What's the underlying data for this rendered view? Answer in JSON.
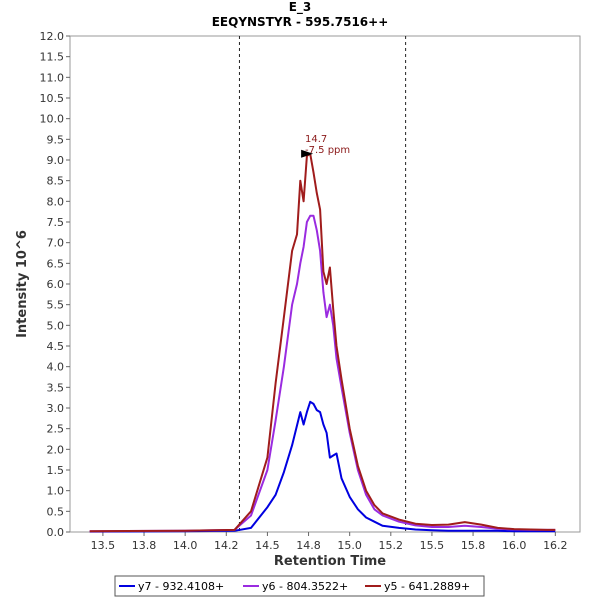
{
  "chart_data": {
    "type": "line",
    "title": "E_3",
    "subtitle": "EEQYNSTYR - 595.7516++",
    "xlabel": "Retention Time",
    "ylabel": "Intensity 10^6",
    "xlim": [
      13.3,
      16.4
    ],
    "ylim": [
      0,
      12.0
    ],
    "xticks": [
      "13.5",
      "13.8",
      "14.0",
      "14.2",
      "14.5",
      "14.8",
      "15.0",
      "15.2",
      "15.5",
      "15.8",
      "16.0",
      "16.2"
    ],
    "xtick_values": [
      13.5,
      13.75,
      14.0,
      14.25,
      14.5,
      14.75,
      15.0,
      15.25,
      15.5,
      15.75,
      16.0,
      16.25
    ],
    "yticks": [
      "0.0",
      "0.5",
      "1.0",
      "1.5",
      "2.0",
      "2.5",
      "3.0",
      "3.5",
      "4.0",
      "4.5",
      "5.0",
      "5.5",
      "6.0",
      "6.5",
      "7.0",
      "7.5",
      "8.0",
      "8.5",
      "9.0",
      "9.5",
      "10.0",
      "10.5",
      "11.0",
      "11.5",
      "12.0"
    ],
    "ytick_values": [
      0,
      0.5,
      1,
      1.5,
      2,
      2.5,
      3,
      3.5,
      4,
      4.5,
      5,
      5.5,
      6,
      6.5,
      7,
      7.5,
      8,
      8.5,
      9,
      9.5,
      10,
      10.5,
      11,
      11.5,
      12
    ],
    "boundaries": [
      14.33,
      15.34
    ],
    "annotation": {
      "x": 14.79,
      "y": 9.15,
      "line1": "14.7",
      "line2": "-7.5 ppm"
    },
    "legend_position": "bottom",
    "grid": false,
    "series": [
      {
        "name": "y7 - 932.4108+",
        "color": "#0000e0",
        "x": [
          13.42,
          14.0,
          14.3,
          14.4,
          14.5,
          14.55,
          14.6,
          14.65,
          14.7,
          14.72,
          14.74,
          14.76,
          14.78,
          14.8,
          14.82,
          14.84,
          14.86,
          14.88,
          14.9,
          14.92,
          14.95,
          15.0,
          15.05,
          15.1,
          15.15,
          15.2,
          15.3,
          15.4,
          15.5,
          15.6,
          15.7,
          15.8,
          15.9,
          16.0,
          16.1,
          16.2,
          16.25
        ],
        "y": [
          0.01,
          0.02,
          0.03,
          0.1,
          0.6,
          0.9,
          1.45,
          2.1,
          2.9,
          2.6,
          2.9,
          3.15,
          3.1,
          2.95,
          2.9,
          2.6,
          2.4,
          1.8,
          1.85,
          1.9,
          1.3,
          0.85,
          0.55,
          0.35,
          0.25,
          0.15,
          0.1,
          0.06,
          0.04,
          0.03,
          0.03,
          0.03,
          0.03,
          0.02,
          0.02,
          0.02,
          0.02
        ]
      },
      {
        "name": "y6 - 804.3522+",
        "color": "#9a2be0",
        "x": [
          13.42,
          14.0,
          14.3,
          14.4,
          14.5,
          14.55,
          14.6,
          14.65,
          14.68,
          14.7,
          14.72,
          14.74,
          14.76,
          14.78,
          14.8,
          14.82,
          14.84,
          14.86,
          14.88,
          14.9,
          14.92,
          14.95,
          15.0,
          15.05,
          15.1,
          15.15,
          15.2,
          15.3,
          15.4,
          15.5,
          15.6,
          15.7,
          15.8,
          15.9,
          16.0,
          16.1,
          16.2,
          16.25
        ],
        "y": [
          0.02,
          0.03,
          0.05,
          0.4,
          1.5,
          2.7,
          4.0,
          5.5,
          6.0,
          6.5,
          6.9,
          7.5,
          7.65,
          7.65,
          7.3,
          6.8,
          5.8,
          5.2,
          5.5,
          5.0,
          4.2,
          3.5,
          2.4,
          1.5,
          0.9,
          0.55,
          0.4,
          0.25,
          0.16,
          0.12,
          0.12,
          0.15,
          0.12,
          0.08,
          0.06,
          0.05,
          0.05,
          0.05
        ]
      },
      {
        "name": "y5 - 641.2889+",
        "color": "#a01c1c",
        "x": [
          13.42,
          14.0,
          14.3,
          14.4,
          14.5,
          14.55,
          14.6,
          14.65,
          14.68,
          14.7,
          14.72,
          14.74,
          14.76,
          14.78,
          14.8,
          14.82,
          14.84,
          14.86,
          14.88,
          14.9,
          14.92,
          14.95,
          15.0,
          15.05,
          15.1,
          15.15,
          15.2,
          15.3,
          15.4,
          15.5,
          15.6,
          15.7,
          15.8,
          15.9,
          16.0,
          16.1,
          16.2,
          16.25
        ],
        "y": [
          0.02,
          0.03,
          0.05,
          0.5,
          1.8,
          3.6,
          5.2,
          6.8,
          7.2,
          8.5,
          8.0,
          9.1,
          9.15,
          8.7,
          8.2,
          7.8,
          6.3,
          6.0,
          6.4,
          5.4,
          4.5,
          3.7,
          2.5,
          1.6,
          1.0,
          0.65,
          0.45,
          0.3,
          0.2,
          0.17,
          0.18,
          0.24,
          0.18,
          0.1,
          0.07,
          0.06,
          0.05,
          0.05
        ]
      }
    ]
  }
}
